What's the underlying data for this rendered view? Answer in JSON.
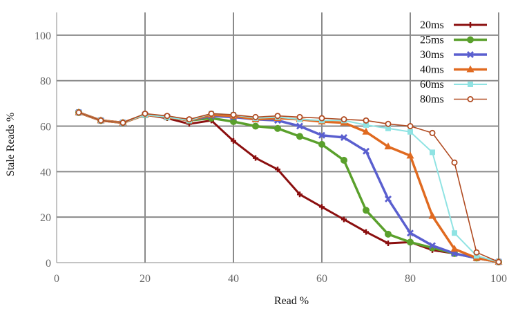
{
  "chart_data": {
    "type": "line",
    "title": "",
    "xlabel": "Read %",
    "ylabel": "Stale Reads %",
    "xlim": [
      0,
      100
    ],
    "ylim": [
      0,
      110
    ],
    "x_ticks": [
      0,
      20,
      40,
      60,
      80,
      100
    ],
    "y_ticks": [
      0,
      20,
      40,
      60,
      80,
      100
    ],
    "grid": true,
    "legend_position": "top-right",
    "x": [
      5,
      10,
      15,
      20,
      25,
      30,
      35,
      40,
      45,
      50,
      55,
      60,
      65,
      70,
      75,
      80,
      85,
      90,
      95,
      100
    ],
    "series": [
      {
        "name": "20ms",
        "color": "#8b0f0f",
        "marker": "plus",
        "values": [
          66,
          62.5,
          61.5,
          65,
          63.5,
          61,
          62.5,
          53.5,
          46,
          41,
          30,
          24.5,
          19,
          13.5,
          8.5,
          9,
          5.5,
          4,
          2,
          0.3
        ]
      },
      {
        "name": "25ms",
        "color": "#5aa02c",
        "marker": "circle",
        "values": [
          66,
          62.5,
          61.5,
          65,
          64,
          62.5,
          63.5,
          62,
          60,
          59,
          55.5,
          52,
          45,
          23,
          12.5,
          9,
          6.5,
          4,
          2,
          0.3
        ]
      },
      {
        "name": "30ms",
        "color": "#5a5fcf",
        "marker": "x",
        "values": [
          66,
          62.5,
          61.5,
          65,
          64,
          62.5,
          64.5,
          64,
          63,
          62.5,
          60,
          56,
          55,
          49,
          28,
          13,
          7.5,
          4,
          2,
          0.3
        ]
      },
      {
        "name": "40ms",
        "color": "#e06a20",
        "marker": "triangle",
        "values": [
          66,
          62.5,
          61.5,
          65,
          64,
          62.5,
          65,
          64.5,
          63,
          63.5,
          63,
          62,
          61.5,
          57.5,
          51,
          47,
          20.5,
          6,
          2,
          0.3
        ]
      },
      {
        "name": "60ms",
        "color": "#8fe3e3",
        "marker": "square",
        "values": [
          66,
          62.5,
          61.5,
          65,
          64,
          62.5,
          65.5,
          65,
          63.5,
          64,
          63,
          62.5,
          62.5,
          60.5,
          59,
          57.5,
          48.5,
          13,
          3,
          0.3
        ]
      },
      {
        "name": "80ms",
        "color": "#b04a20",
        "marker": "open-circle",
        "values": [
          66,
          62.5,
          61.5,
          65.5,
          64.5,
          63,
          65.5,
          65,
          64,
          64.5,
          64,
          63.5,
          63,
          62.5,
          61,
          60,
          57,
          44,
          4.5,
          0.3
        ]
      }
    ]
  }
}
